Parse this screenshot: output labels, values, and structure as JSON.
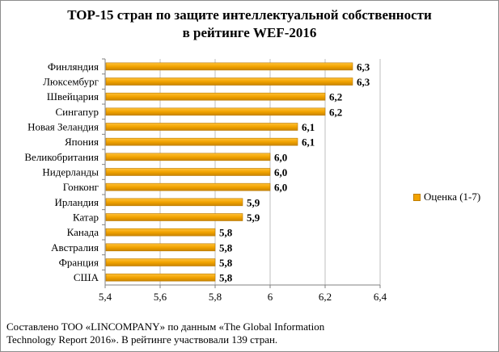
{
  "chart_data": {
    "type": "bar",
    "orientation": "horizontal",
    "title_line1": "TOP-15 стран по защите интеллектуальной собственности",
    "title_line2": "в рейтинге WEF-2016",
    "categories": [
      "Финляндия",
      "Люксембург",
      "Швейцария",
      "Сингапур",
      "Новая Зеландия",
      "Япония",
      "Великобритания",
      "Нидерланды",
      "Гонконг",
      "Ирландия",
      "Катар",
      "Канада",
      "Австралия",
      "Франция",
      "США"
    ],
    "values": [
      6.3,
      6.3,
      6.2,
      6.2,
      6.1,
      6.1,
      6.0,
      6.0,
      6.0,
      5.9,
      5.9,
      5.8,
      5.8,
      5.8,
      5.8
    ],
    "value_labels": [
      "6,3",
      "6,3",
      "6,2",
      "6,2",
      "6,1",
      "6,1",
      "6,0",
      "6,0",
      "6,0",
      "5,9",
      "5,9",
      "5,8",
      "5,8",
      "5,8",
      "5,8"
    ],
    "xlim": [
      5.4,
      6.4
    ],
    "xticks": [
      5.4,
      5.6,
      5.8,
      6.0,
      6.2,
      6.4
    ],
    "xtick_labels": [
      "5,4",
      "5,6",
      "5,8",
      "6",
      "6,2",
      "6,4"
    ],
    "series": [
      {
        "name": "Оценка (1-7)",
        "values": [
          6.3,
          6.3,
          6.2,
          6.2,
          6.1,
          6.1,
          6.0,
          6.0,
          6.0,
          5.9,
          5.9,
          5.8,
          5.8,
          5.8,
          5.8
        ]
      }
    ],
    "grid": "vertical",
    "legend_position": "right",
    "bar_color": "#f2a300"
  },
  "footnote": {
    "line1": "Составлено ТОО «LINCOMPANY» по данным  «The Global Information",
    "line2": "Technology Report 2016». В рейтинге участвовали 139 стран."
  }
}
